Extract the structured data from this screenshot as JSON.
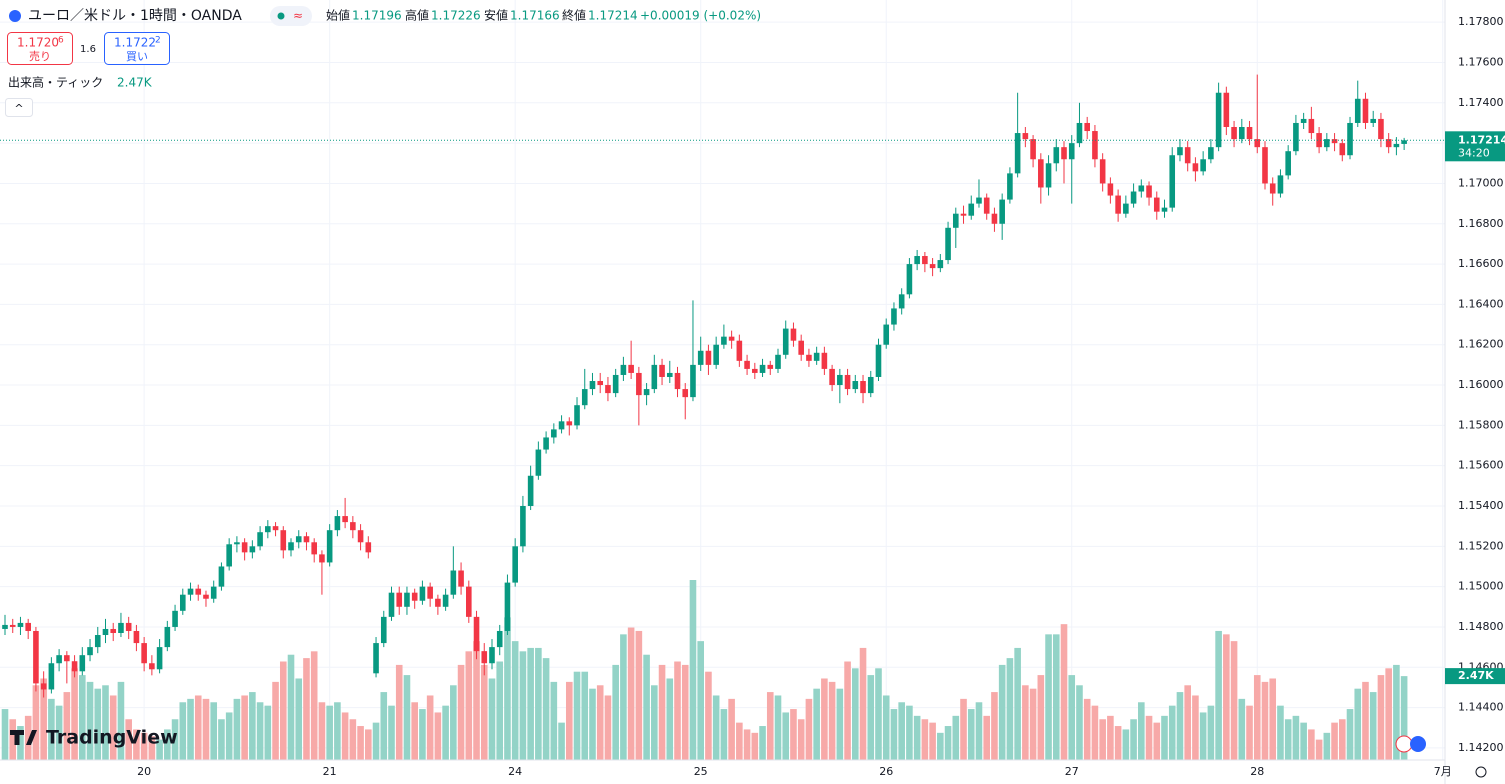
{
  "header": {
    "symbol": "ユーロ／米ドル・1時間・OANDA",
    "indicator_pill": "≈",
    "open_label": "始値",
    "high_label": "高値",
    "low_label": "安値",
    "close_label": "終値",
    "change": "+0.00019 (+0.02%)",
    "sell": {
      "price": "1.1720",
      "pip": "6",
      "label": "売り"
    },
    "spread": "1.6",
    "buy": {
      "price": "1.1722",
      "pip": "2",
      "label": "買い"
    },
    "volume_indicator": {
      "name": "出来高・ティック",
      "value_label": "2.47K"
    },
    "countdown": "34:20",
    "logo": "TradingView",
    "collapse": "^"
  },
  "chart_data": {
    "type": "candlestick",
    "up_color": "#089981",
    "down_color": "#f23645",
    "volume_up_color": "#93d3c7",
    "volume_down_color": "#f7a9a8",
    "grid": true,
    "ylim": [
      1.1414,
      1.1791
    ],
    "yticks": [
      {
        "value": 1.142,
        "label": "1.14200"
      },
      {
        "value": 1.144,
        "label": "1.14400"
      },
      {
        "value": 1.146,
        "label": "1.14600"
      },
      {
        "value": 1.148,
        "label": "1.14800"
      },
      {
        "value": 1.15,
        "label": "1.15000"
      },
      {
        "value": 1.152,
        "label": "1.15200"
      },
      {
        "value": 1.154,
        "label": "1.15400"
      },
      {
        "value": 1.156,
        "label": "1.15600"
      },
      {
        "value": 1.158,
        "label": "1.15800"
      },
      {
        "value": 1.16,
        "label": "1.16000"
      },
      {
        "value": 1.162,
        "label": "1.16200"
      },
      {
        "value": 1.164,
        "label": "1.16400"
      },
      {
        "value": 1.166,
        "label": "1.16600"
      },
      {
        "value": 1.168,
        "label": "1.16800"
      },
      {
        "value": 1.17,
        "label": "1.17000"
      },
      {
        "value": 1.172,
        "label": "1.17200"
      },
      {
        "value": 1.174,
        "label": "1.17400"
      },
      {
        "value": 1.176,
        "label": "1.17600"
      },
      {
        "value": 1.178,
        "label": "1.17800"
      }
    ],
    "xticks": [
      {
        "value": 18,
        "label": "20"
      },
      {
        "value": 42,
        "label": "21"
      },
      {
        "value": 66,
        "label": "24"
      },
      {
        "value": 90,
        "label": "25"
      },
      {
        "value": 114,
        "label": "26"
      },
      {
        "value": 138,
        "label": "27"
      },
      {
        "value": 162,
        "label": "28"
      },
      {
        "value": 186,
        "label": "7月"
      }
    ],
    "ohlc": [
      [
        1.1479,
        1.1486,
        1.1476,
        1.1481
      ],
      [
        1.1481,
        1.1484,
        1.1477,
        1.148
      ],
      [
        1.148,
        1.1485,
        1.1476,
        1.1482
      ],
      [
        1.1482,
        1.1484,
        1.1474,
        1.1478
      ],
      [
        1.1478,
        1.148,
        1.1448,
        1.1452
      ],
      [
        1.1452,
        1.1458,
        1.1445,
        1.1449
      ],
      [
        1.1449,
        1.1465,
        1.1447,
        1.1462
      ],
      [
        1.1462,
        1.1469,
        1.1458,
        1.1466
      ],
      [
        1.1466,
        1.1468,
        1.1452,
        1.1463
      ],
      [
        1.1463,
        1.1466,
        1.1455,
        1.1458
      ],
      [
        1.1458,
        1.147,
        1.1456,
        1.1466
      ],
      [
        1.1466,
        1.1474,
        1.1463,
        1.147
      ],
      [
        1.147,
        1.148,
        1.1467,
        1.1476
      ],
      [
        1.1476,
        1.1484,
        1.1472,
        1.1479
      ],
      [
        1.1479,
        1.1482,
        1.1473,
        1.1477
      ],
      [
        1.1477,
        1.1487,
        1.1475,
        1.1482
      ],
      [
        1.1482,
        1.1485,
        1.1474,
        1.1478
      ],
      [
        1.1478,
        1.1481,
        1.1468,
        1.1472
      ],
      [
        1.1472,
        1.1475,
        1.1458,
        1.1462
      ],
      [
        1.1462,
        1.1466,
        1.1456,
        1.1459
      ],
      [
        1.1459,
        1.1474,
        1.1457,
        1.147
      ],
      [
        1.147,
        1.1483,
        1.1468,
        1.148
      ],
      [
        1.148,
        1.1491,
        1.1478,
        1.1488
      ],
      [
        1.1488,
        1.1499,
        1.1486,
        1.1496
      ],
      [
        1.1496,
        1.1502,
        1.1493,
        1.1499
      ],
      [
        1.1499,
        1.1501,
        1.1493,
        1.1496
      ],
      [
        1.1496,
        1.1498,
        1.149,
        1.1494
      ],
      [
        1.1494,
        1.1503,
        1.1492,
        1.15
      ],
      [
        1.15,
        1.1512,
        1.1498,
        1.151
      ],
      [
        1.151,
        1.1524,
        1.1508,
        1.1521
      ],
      [
        1.1521,
        1.1525,
        1.1517,
        1.1522
      ],
      [
        1.1522,
        1.1524,
        1.1513,
        1.1517
      ],
      [
        1.1517,
        1.1523,
        1.1514,
        1.152
      ],
      [
        1.152,
        1.153,
        1.1518,
        1.1527
      ],
      [
        1.1527,
        1.1533,
        1.1524,
        1.153
      ],
      [
        1.153,
        1.1532,
        1.1525,
        1.1528
      ],
      [
        1.1528,
        1.153,
        1.1514,
        1.1518
      ],
      [
        1.1518,
        1.1524,
        1.1515,
        1.1522
      ],
      [
        1.1522,
        1.1528,
        1.1519,
        1.1525
      ],
      [
        1.1525,
        1.1527,
        1.1518,
        1.1522
      ],
      [
        1.1522,
        1.1524,
        1.1512,
        1.1516
      ],
      [
        1.1516,
        1.1518,
        1.1496,
        1.1512
      ],
      [
        1.1512,
        1.1531,
        1.151,
        1.1528
      ],
      [
        1.1528,
        1.1538,
        1.1525,
        1.1535
      ],
      [
        1.1535,
        1.1544,
        1.1529,
        1.1532
      ],
      [
        1.1532,
        1.1535,
        1.1524,
        1.1528
      ],
      [
        1.1528,
        1.1531,
        1.1518,
        1.1522
      ],
      [
        1.1522,
        1.1525,
        1.1514,
        1.1517
      ],
      [
        1.1457,
        1.1475,
        1.1455,
        1.1472
      ],
      [
        1.1472,
        1.1488,
        1.147,
        1.1485
      ],
      [
        1.1485,
        1.15,
        1.1483,
        1.1497
      ],
      [
        1.1497,
        1.15,
        1.1486,
        1.149
      ],
      [
        1.149,
        1.15,
        1.1486,
        1.1497
      ],
      [
        1.1497,
        1.1499,
        1.1489,
        1.1493
      ],
      [
        1.1493,
        1.1503,
        1.1491,
        1.15
      ],
      [
        1.15,
        1.1502,
        1.149,
        1.1494
      ],
      [
        1.1494,
        1.1496,
        1.1486,
        1.149
      ],
      [
        1.149,
        1.1499,
        1.1488,
        1.1496
      ],
      [
        1.1496,
        1.152,
        1.1494,
        1.1508
      ],
      [
        1.1508,
        1.1512,
        1.1496,
        1.15
      ],
      [
        1.15,
        1.1503,
        1.1482,
        1.1485
      ],
      [
        1.1485,
        1.1488,
        1.1464,
        1.1468
      ],
      [
        1.1468,
        1.1472,
        1.1456,
        1.1462
      ],
      [
        1.1462,
        1.1474,
        1.1459,
        1.147
      ],
      [
        1.147,
        1.1481,
        1.1466,
        1.1478
      ],
      [
        1.1478,
        1.1506,
        1.1476,
        1.1502
      ],
      [
        1.1502,
        1.1524,
        1.15,
        1.152
      ],
      [
        1.152,
        1.1545,
        1.1517,
        1.154
      ],
      [
        1.154,
        1.156,
        1.1538,
        1.1555
      ],
      [
        1.1555,
        1.1572,
        1.1553,
        1.1568
      ],
      [
        1.1568,
        1.1577,
        1.1566,
        1.1574
      ],
      [
        1.1574,
        1.1581,
        1.1571,
        1.1578
      ],
      [
        1.1578,
        1.1585,
        1.1576,
        1.1582
      ],
      [
        1.1582,
        1.1584,
        1.1575,
        1.158
      ],
      [
        1.158,
        1.1594,
        1.1578,
        1.159
      ],
      [
        1.159,
        1.1608,
        1.1588,
        1.1598
      ],
      [
        1.1598,
        1.1606,
        1.1595,
        1.1602
      ],
      [
        1.1602,
        1.1606,
        1.1596,
        1.16
      ],
      [
        1.16,
        1.1604,
        1.1592,
        1.1596
      ],
      [
        1.1596,
        1.1608,
        1.1594,
        1.1605
      ],
      [
        1.1605,
        1.1614,
        1.1602,
        1.161
      ],
      [
        1.161,
        1.1622,
        1.1603,
        1.1606
      ],
      [
        1.1606,
        1.1609,
        1.158,
        1.1595
      ],
      [
        1.1595,
        1.1601,
        1.159,
        1.1598
      ],
      [
        1.1598,
        1.1615,
        1.1596,
        1.161
      ],
      [
        1.161,
        1.1613,
        1.16,
        1.1604
      ],
      [
        1.1604,
        1.1612,
        1.1601,
        1.1606
      ],
      [
        1.1606,
        1.1609,
        1.1594,
        1.1598
      ],
      [
        1.1598,
        1.1601,
        1.1583,
        1.1594
      ],
      [
        1.1594,
        1.1642,
        1.1592,
        1.161
      ],
      [
        1.161,
        1.1624,
        1.1607,
        1.1617
      ],
      [
        1.1617,
        1.162,
        1.1605,
        1.161
      ],
      [
        1.161,
        1.1624,
        1.1608,
        1.162
      ],
      [
        1.162,
        1.163,
        1.1618,
        1.1624
      ],
      [
        1.1624,
        1.1627,
        1.1618,
        1.1622
      ],
      [
        1.1622,
        1.1625,
        1.1609,
        1.1612
      ],
      [
        1.1612,
        1.1615,
        1.1605,
        1.1608
      ],
      [
        1.1608,
        1.1611,
        1.1603,
        1.1606
      ],
      [
        1.1606,
        1.1613,
        1.1604,
        1.161
      ],
      [
        1.161,
        1.1612,
        1.1605,
        1.1608
      ],
      [
        1.1608,
        1.1618,
        1.1606,
        1.1615
      ],
      [
        1.1615,
        1.1632,
        1.1613,
        1.1628
      ],
      [
        1.1628,
        1.1631,
        1.1619,
        1.1622
      ],
      [
        1.1622,
        1.1625,
        1.1612,
        1.1615
      ],
      [
        1.1615,
        1.1618,
        1.1609,
        1.1612
      ],
      [
        1.1612,
        1.1619,
        1.161,
        1.1616
      ],
      [
        1.1616,
        1.1619,
        1.1605,
        1.1608
      ],
      [
        1.1608,
        1.161,
        1.1597,
        1.16
      ],
      [
        1.16,
        1.1608,
        1.1591,
        1.1605
      ],
      [
        1.1605,
        1.1608,
        1.1595,
        1.1598
      ],
      [
        1.1598,
        1.1605,
        1.1596,
        1.1602
      ],
      [
        1.1602,
        1.1605,
        1.1591,
        1.1596
      ],
      [
        1.1596,
        1.1607,
        1.1594,
        1.1604
      ],
      [
        1.1604,
        1.1623,
        1.1602,
        1.162
      ],
      [
        1.162,
        1.1633,
        1.1618,
        1.163
      ],
      [
        1.163,
        1.1641,
        1.1627,
        1.1638
      ],
      [
        1.1638,
        1.1648,
        1.1635,
        1.1645
      ],
      [
        1.1645,
        1.1663,
        1.1643,
        1.166
      ],
      [
        1.166,
        1.1667,
        1.1657,
        1.1664
      ],
      [
        1.1664,
        1.1666,
        1.1656,
        1.166
      ],
      [
        1.166,
        1.1663,
        1.1654,
        1.1658
      ],
      [
        1.1658,
        1.1665,
        1.1656,
        1.1662
      ],
      [
        1.1662,
        1.1681,
        1.166,
        1.1678
      ],
      [
        1.1678,
        1.1688,
        1.1668,
        1.1685
      ],
      [
        1.1685,
        1.1689,
        1.168,
        1.1684
      ],
      [
        1.1684,
        1.1694,
        1.1682,
        1.169
      ],
      [
        1.169,
        1.1702,
        1.1688,
        1.1693
      ],
      [
        1.1693,
        1.1695,
        1.1682,
        1.1685
      ],
      [
        1.1685,
        1.1688,
        1.1676,
        1.168
      ],
      [
        1.168,
        1.1695,
        1.1672,
        1.1692
      ],
      [
        1.1692,
        1.1708,
        1.169,
        1.1705
      ],
      [
        1.1705,
        1.1745,
        1.1703,
        1.1725
      ],
      [
        1.1725,
        1.1728,
        1.1718,
        1.1722
      ],
      [
        1.1722,
        1.1724,
        1.1708,
        1.1712
      ],
      [
        1.1712,
        1.1715,
        1.169,
        1.1698
      ],
      [
        1.1698,
        1.1714,
        1.1694,
        1.171
      ],
      [
        1.171,
        1.1722,
        1.1706,
        1.1718
      ],
      [
        1.1718,
        1.1721,
        1.17,
        1.1712
      ],
      [
        1.1712,
        1.1724,
        1.169,
        1.172
      ],
      [
        1.172,
        1.174,
        1.1718,
        1.173
      ],
      [
        1.173,
        1.1733,
        1.1722,
        1.1726
      ],
      [
        1.1726,
        1.1729,
        1.1708,
        1.1712
      ],
      [
        1.1712,
        1.1715,
        1.1696,
        1.17
      ],
      [
        1.17,
        1.1703,
        1.169,
        1.1694
      ],
      [
        1.1694,
        1.1697,
        1.1681,
        1.1685
      ],
      [
        1.1685,
        1.1694,
        1.1683,
        1.169
      ],
      [
        1.169,
        1.17,
        1.1688,
        1.1696
      ],
      [
        1.1696,
        1.1702,
        1.1693,
        1.1699
      ],
      [
        1.1699,
        1.1701,
        1.1689,
        1.1693
      ],
      [
        1.1693,
        1.1696,
        1.1682,
        1.1686
      ],
      [
        1.1686,
        1.1692,
        1.1683,
        1.1688
      ],
      [
        1.1688,
        1.1718,
        1.1686,
        1.1714
      ],
      [
        1.1714,
        1.1722,
        1.1711,
        1.1718
      ],
      [
        1.1718,
        1.1721,
        1.1706,
        1.171
      ],
      [
        1.171,
        1.1713,
        1.1701,
        1.1706
      ],
      [
        1.1706,
        1.1716,
        1.1704,
        1.1712
      ],
      [
        1.1712,
        1.1722,
        1.171,
        1.1718
      ],
      [
        1.1718,
        1.175,
        1.1716,
        1.1745
      ],
      [
        1.1745,
        1.1748,
        1.1724,
        1.1728
      ],
      [
        1.1728,
        1.1731,
        1.1718,
        1.1722
      ],
      [
        1.1722,
        1.1732,
        1.172,
        1.1728
      ],
      [
        1.1728,
        1.1731,
        1.1719,
        1.1722
      ],
      [
        1.1722,
        1.1754,
        1.1715,
        1.1718
      ],
      [
        1.1718,
        1.1721,
        1.1697,
        1.17
      ],
      [
        1.17,
        1.1703,
        1.1689,
        1.1695
      ],
      [
        1.1695,
        1.1707,
        1.1693,
        1.1704
      ],
      [
        1.1704,
        1.1719,
        1.1702,
        1.1716
      ],
      [
        1.1716,
        1.1734,
        1.1714,
        1.173
      ],
      [
        1.173,
        1.1735,
        1.1727,
        1.1732
      ],
      [
        1.1732,
        1.1738,
        1.1722,
        1.1725
      ],
      [
        1.1725,
        1.1728,
        1.1715,
        1.1718
      ],
      [
        1.1718,
        1.1725,
        1.1716,
        1.1722
      ],
      [
        1.1722,
        1.1725,
        1.1716,
        1.172
      ],
      [
        1.172,
        1.1722,
        1.1711,
        1.1714
      ],
      [
        1.1714,
        1.1733,
        1.1712,
        1.173
      ],
      [
        1.173,
        1.1751,
        1.1728,
        1.1742
      ],
      [
        1.1742,
        1.1745,
        1.1727,
        1.173
      ],
      [
        1.173,
        1.1736,
        1.1728,
        1.1732
      ],
      [
        1.1732,
        1.1735,
        1.1718,
        1.1722
      ],
      [
        1.1722,
        1.1725,
        1.1715,
        1.1718
      ],
      [
        1.1718,
        1.1723,
        1.1714,
        1.17196
      ],
      [
        1.17196,
        1.17226,
        1.17166,
        1.17214
      ]
    ],
    "volume": [
      1500,
      1200,
      1000,
      1300,
      2200,
      2400,
      1800,
      1600,
      2000,
      2700,
      2500,
      2300,
      2100,
      2200,
      1900,
      2300,
      1200,
      900,
      800,
      700,
      600,
      900,
      1200,
      1700,
      1800,
      1900,
      1800,
      1700,
      1200,
      1400,
      1800,
      1900,
      2000,
      1700,
      1600,
      2300,
      2900,
      3100,
      2400,
      3000,
      3200,
      1700,
      1600,
      1700,
      1400,
      1200,
      1000,
      900,
      1100,
      2000,
      1600,
      2800,
      2500,
      1700,
      1500,
      1900,
      1400,
      1600,
      2200,
      2800,
      3200,
      3500,
      2800,
      2400,
      2900,
      4200,
      3500,
      3200,
      3300,
      3300,
      3000,
      2300,
      1100,
      2300,
      2600,
      2600,
      2100,
      2200,
      1900,
      2800,
      3700,
      3900,
      3800,
      3100,
      2200,
      2800,
      2400,
      2900,
      2800,
      5300,
      3500,
      2600,
      1900,
      1500,
      1800,
      1100,
      900,
      800,
      1000,
      2000,
      1900,
      1400,
      1500,
      1200,
      1800,
      2100,
      2400,
      2300,
      2100,
      2900,
      2700,
      3300,
      2500,
      2700,
      1900,
      1500,
      1700,
      1600,
      1300,
      1200,
      1100,
      800,
      1000,
      1300,
      1800,
      1500,
      1700,
      1300,
      2000,
      2800,
      3000,
      3300,
      2200,
      2100,
      2500,
      3700,
      3700,
      4000,
      2500,
      2200,
      1800,
      1600,
      1200,
      1300,
      1000,
      900,
      1200,
      1700,
      1300,
      1100,
      1300,
      1600,
      2000,
      2200,
      1900,
      1400,
      1600,
      3800,
      3700,
      3500,
      1800,
      1600,
      2500,
      2300,
      2400,
      1600,
      1200,
      1300,
      1100,
      900,
      600,
      800,
      1100,
      1200,
      1500,
      2100,
      2300,
      2000,
      2500,
      2700,
      2800,
      2470
    ]
  }
}
